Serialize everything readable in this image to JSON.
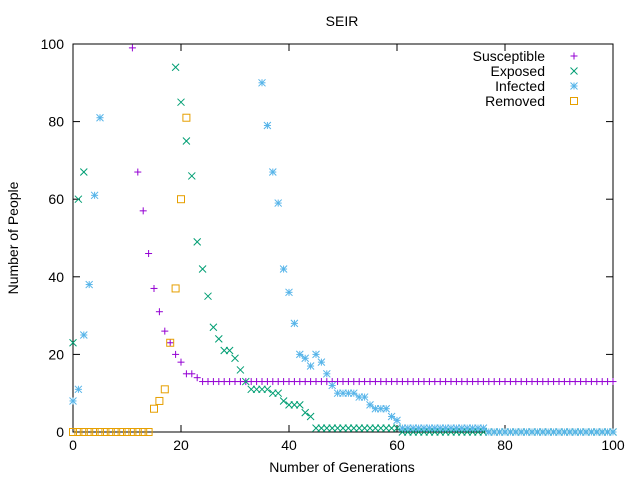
{
  "chart_data": {
    "type": "scatter",
    "title": "SEIR",
    "xlabel": "Number of Generations",
    "ylabel": "Number of People",
    "xlim": [
      0,
      100
    ],
    "ylim": [
      0,
      100
    ],
    "xticks": [
      0,
      20,
      40,
      60,
      80,
      100
    ],
    "yticks": [
      0,
      20,
      40,
      60,
      80,
      100
    ],
    "grid": false,
    "legend_position": "top-right",
    "series": [
      {
        "name": "Susceptible",
        "marker": "plus",
        "color": "#9400d3",
        "x": [
          11,
          12,
          13,
          14,
          15,
          16,
          17,
          18,
          19,
          20,
          21,
          22,
          23,
          24,
          25,
          26,
          27,
          28,
          29,
          30,
          31,
          32,
          33,
          34,
          35,
          36,
          37,
          38,
          39,
          40,
          41,
          42,
          43,
          44,
          45,
          46,
          47,
          48,
          49,
          50,
          51,
          52,
          53,
          54,
          55,
          56,
          57,
          58,
          59,
          60,
          61,
          62,
          63,
          64,
          65,
          66,
          67,
          68,
          69,
          70,
          71,
          72,
          73,
          74,
          75,
          76,
          77,
          78,
          79,
          80,
          81,
          82,
          83,
          84,
          85,
          86,
          87,
          88,
          89,
          90,
          91,
          92,
          93,
          94,
          95,
          96,
          97,
          98,
          99,
          100
        ],
        "y": [
          99,
          67,
          57,
          46,
          37,
          31,
          26,
          23,
          20,
          18,
          15,
          15,
          14,
          13,
          13,
          13,
          13,
          13,
          13,
          13,
          13,
          13,
          13,
          13,
          13,
          13,
          13,
          13,
          13,
          13,
          13,
          13,
          13,
          13,
          13,
          13,
          13,
          13,
          13,
          13,
          13,
          13,
          13,
          13,
          13,
          13,
          13,
          13,
          13,
          13,
          13,
          13,
          13,
          13,
          13,
          13,
          13,
          13,
          13,
          13,
          13,
          13,
          13,
          13,
          13,
          13,
          13,
          13,
          13,
          13,
          13,
          13,
          13,
          13,
          13,
          13,
          13,
          13,
          13,
          13,
          13,
          13,
          13,
          13,
          13,
          13,
          13,
          13,
          13,
          13
        ]
      },
      {
        "name": "Exposed",
        "marker": "cross",
        "color": "#009e73",
        "x": [
          0,
          1,
          2,
          19,
          20,
          21,
          22,
          23,
          24,
          25,
          26,
          27,
          28,
          29,
          30,
          31,
          32,
          33,
          34,
          35,
          36,
          37,
          38,
          39,
          40,
          41,
          42,
          43,
          44,
          45,
          46,
          47,
          48,
          49,
          50,
          51,
          52,
          53,
          54,
          55,
          56,
          57,
          58,
          59,
          60,
          61,
          62,
          63,
          64,
          65,
          66,
          67,
          68,
          69,
          70,
          71,
          72,
          73,
          74,
          75,
          76,
          77,
          78,
          79,
          80,
          81,
          82,
          83,
          84,
          85,
          86,
          87,
          88,
          89,
          90,
          91,
          92,
          93,
          94,
          95,
          96,
          97,
          98,
          99,
          100
        ],
        "y": [
          23,
          60,
          67,
          94,
          85,
          75,
          66,
          49,
          42,
          35,
          27,
          24,
          21,
          21,
          19,
          16,
          13,
          11,
          11,
          11,
          11,
          10,
          10,
          8,
          7,
          7,
          7,
          5,
          4,
          1,
          1,
          1,
          1,
          1,
          1,
          1,
          1,
          1,
          1,
          1,
          1,
          1,
          1,
          1,
          1,
          0,
          0,
          0,
          0,
          0,
          0,
          0,
          0,
          0,
          0,
          0,
          0,
          0,
          0,
          0,
          0,
          0,
          0,
          0,
          0,
          0,
          0,
          0,
          0,
          0,
          0,
          0,
          0,
          0,
          0,
          0,
          0,
          0,
          0,
          0,
          0,
          0,
          0,
          0,
          0
        ]
      },
      {
        "name": "Infected",
        "marker": "star",
        "color": "#56b4e9",
        "x": [
          0,
          1,
          2,
          3,
          4,
          5,
          35,
          36,
          37,
          38,
          39,
          40,
          41,
          42,
          43,
          44,
          45,
          46,
          47,
          48,
          49,
          50,
          51,
          52,
          53,
          54,
          55,
          56,
          57,
          58,
          59,
          60,
          61,
          62,
          63,
          64,
          65,
          66,
          67,
          68,
          69,
          70,
          71,
          72,
          73,
          74,
          75,
          76,
          77,
          78,
          79,
          80,
          81,
          82,
          83,
          84,
          85,
          86,
          87,
          88,
          89,
          90,
          91,
          92,
          93,
          94,
          95,
          96,
          97,
          98,
          99,
          100
        ],
        "y": [
          8,
          11,
          25,
          38,
          61,
          81,
          90,
          79,
          67,
          59,
          42,
          36,
          28,
          20,
          19,
          17,
          20,
          18,
          15,
          12,
          10,
          10,
          10,
          10,
          9,
          9,
          7,
          6,
          6,
          6,
          4,
          3,
          1,
          1,
          1,
          1,
          1,
          1,
          1,
          1,
          1,
          1,
          1,
          1,
          1,
          1,
          1,
          1,
          0,
          0,
          0,
          0,
          0,
          0,
          0,
          0,
          0,
          0,
          0,
          0,
          0,
          0,
          0,
          0,
          0,
          0,
          0,
          0,
          0,
          0,
          0,
          0
        ]
      },
      {
        "name": "Removed",
        "marker": "square",
        "color": "#e69f00",
        "x": [
          0,
          1,
          2,
          3,
          4,
          5,
          6,
          7,
          8,
          9,
          10,
          11,
          12,
          13,
          14,
          15,
          16,
          17,
          18,
          19,
          20,
          21
        ],
        "y": [
          0,
          0,
          0,
          0,
          0,
          0,
          0,
          0,
          0,
          0,
          0,
          0,
          0,
          0,
          0,
          6,
          8,
          11,
          23,
          37,
          60,
          81
        ]
      }
    ]
  }
}
